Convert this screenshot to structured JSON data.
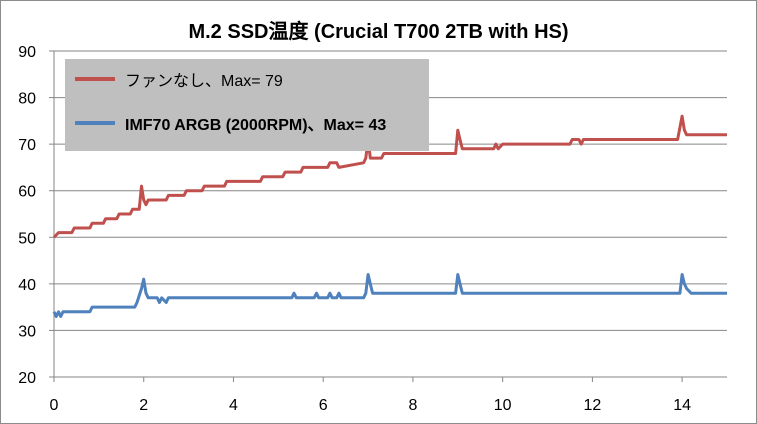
{
  "chart_data": {
    "type": "line",
    "title": "M.2 SSD温度 (Crucial T700 2TB with HS)",
    "xlabel": "",
    "ylabel": "",
    "xlim": [
      0,
      15
    ],
    "ylim": [
      20,
      90
    ],
    "xticks": [
      0,
      2,
      4,
      6,
      8,
      10,
      12,
      14
    ],
    "yticks": [
      20,
      30,
      40,
      50,
      60,
      70,
      80,
      90
    ],
    "grid": "horizontal",
    "legend_position": "top-left",
    "series": [
      {
        "name": "ファンなし、Max= 79",
        "color": "#c0504d",
        "points": [
          [
            0,
            50
          ],
          [
            0.1,
            51
          ],
          [
            0.4,
            51
          ],
          [
            0.45,
            52
          ],
          [
            0.8,
            52
          ],
          [
            0.85,
            53
          ],
          [
            1.1,
            53
          ],
          [
            1.15,
            54
          ],
          [
            1.4,
            54
          ],
          [
            1.45,
            55
          ],
          [
            1.7,
            55
          ],
          [
            1.75,
            56
          ],
          [
            1.9,
            56
          ],
          [
            1.95,
            61
          ],
          [
            2.0,
            58
          ],
          [
            2.05,
            57
          ],
          [
            2.1,
            58
          ],
          [
            2.5,
            58
          ],
          [
            2.55,
            59
          ],
          [
            2.9,
            59
          ],
          [
            2.95,
            60
          ],
          [
            3.3,
            60
          ],
          [
            3.35,
            61
          ],
          [
            3.8,
            61
          ],
          [
            3.85,
            62
          ],
          [
            4.6,
            62
          ],
          [
            4.65,
            63
          ],
          [
            5.1,
            63
          ],
          [
            5.15,
            64
          ],
          [
            5.5,
            64
          ],
          [
            5.55,
            65
          ],
          [
            6.1,
            65
          ],
          [
            6.15,
            66
          ],
          [
            6.3,
            66
          ],
          [
            6.35,
            65
          ],
          [
            6.9,
            66
          ],
          [
            6.95,
            67
          ],
          [
            7.0,
            71
          ],
          [
            7.05,
            67
          ],
          [
            7.3,
            67
          ],
          [
            7.35,
            68
          ],
          [
            8.2,
            68
          ],
          [
            8.3,
            68
          ],
          [
            8.4,
            68
          ],
          [
            8.95,
            68
          ],
          [
            9.0,
            73
          ],
          [
            9.05,
            71
          ],
          [
            9.1,
            69
          ],
          [
            9.8,
            69
          ],
          [
            9.85,
            70
          ],
          [
            9.9,
            69
          ],
          [
            10.0,
            70
          ],
          [
            11.5,
            70
          ],
          [
            11.55,
            71
          ],
          [
            11.7,
            71
          ],
          [
            11.75,
            70
          ],
          [
            11.8,
            71
          ],
          [
            13.9,
            71
          ],
          [
            14.0,
            76
          ],
          [
            14.05,
            73
          ],
          [
            14.1,
            72
          ],
          [
            14.4,
            72
          ],
          [
            15,
            72
          ]
        ]
      },
      {
        "name": "IMF70 ARGB (2000RPM)、Max= 43",
        "color": "#4f81bd",
        "points": [
          [
            0,
            34
          ],
          [
            0.05,
            33
          ],
          [
            0.1,
            34
          ],
          [
            0.15,
            33
          ],
          [
            0.2,
            34
          ],
          [
            0.8,
            34
          ],
          [
            0.85,
            35
          ],
          [
            1.8,
            35
          ],
          [
            1.85,
            36
          ],
          [
            1.95,
            39
          ],
          [
            2.0,
            41
          ],
          [
            2.05,
            38
          ],
          [
            2.1,
            37
          ],
          [
            2.3,
            37
          ],
          [
            2.35,
            36
          ],
          [
            2.4,
            37
          ],
          [
            2.5,
            36
          ],
          [
            2.55,
            37
          ],
          [
            5.3,
            37
          ],
          [
            5.35,
            38
          ],
          [
            5.4,
            37
          ],
          [
            5.8,
            37
          ],
          [
            5.85,
            38
          ],
          [
            5.9,
            37
          ],
          [
            6.1,
            37
          ],
          [
            6.15,
            38
          ],
          [
            6.2,
            37
          ],
          [
            6.3,
            37
          ],
          [
            6.35,
            38
          ],
          [
            6.4,
            37
          ],
          [
            6.9,
            37
          ],
          [
            6.95,
            38
          ],
          [
            7.0,
            42
          ],
          [
            7.05,
            40
          ],
          [
            7.1,
            38
          ],
          [
            8.95,
            38
          ],
          [
            9.0,
            42
          ],
          [
            9.05,
            40
          ],
          [
            9.1,
            38
          ],
          [
            13.95,
            38
          ],
          [
            14.0,
            42
          ],
          [
            14.05,
            40
          ],
          [
            14.1,
            39
          ],
          [
            14.2,
            38
          ],
          [
            15,
            38
          ]
        ]
      }
    ]
  }
}
